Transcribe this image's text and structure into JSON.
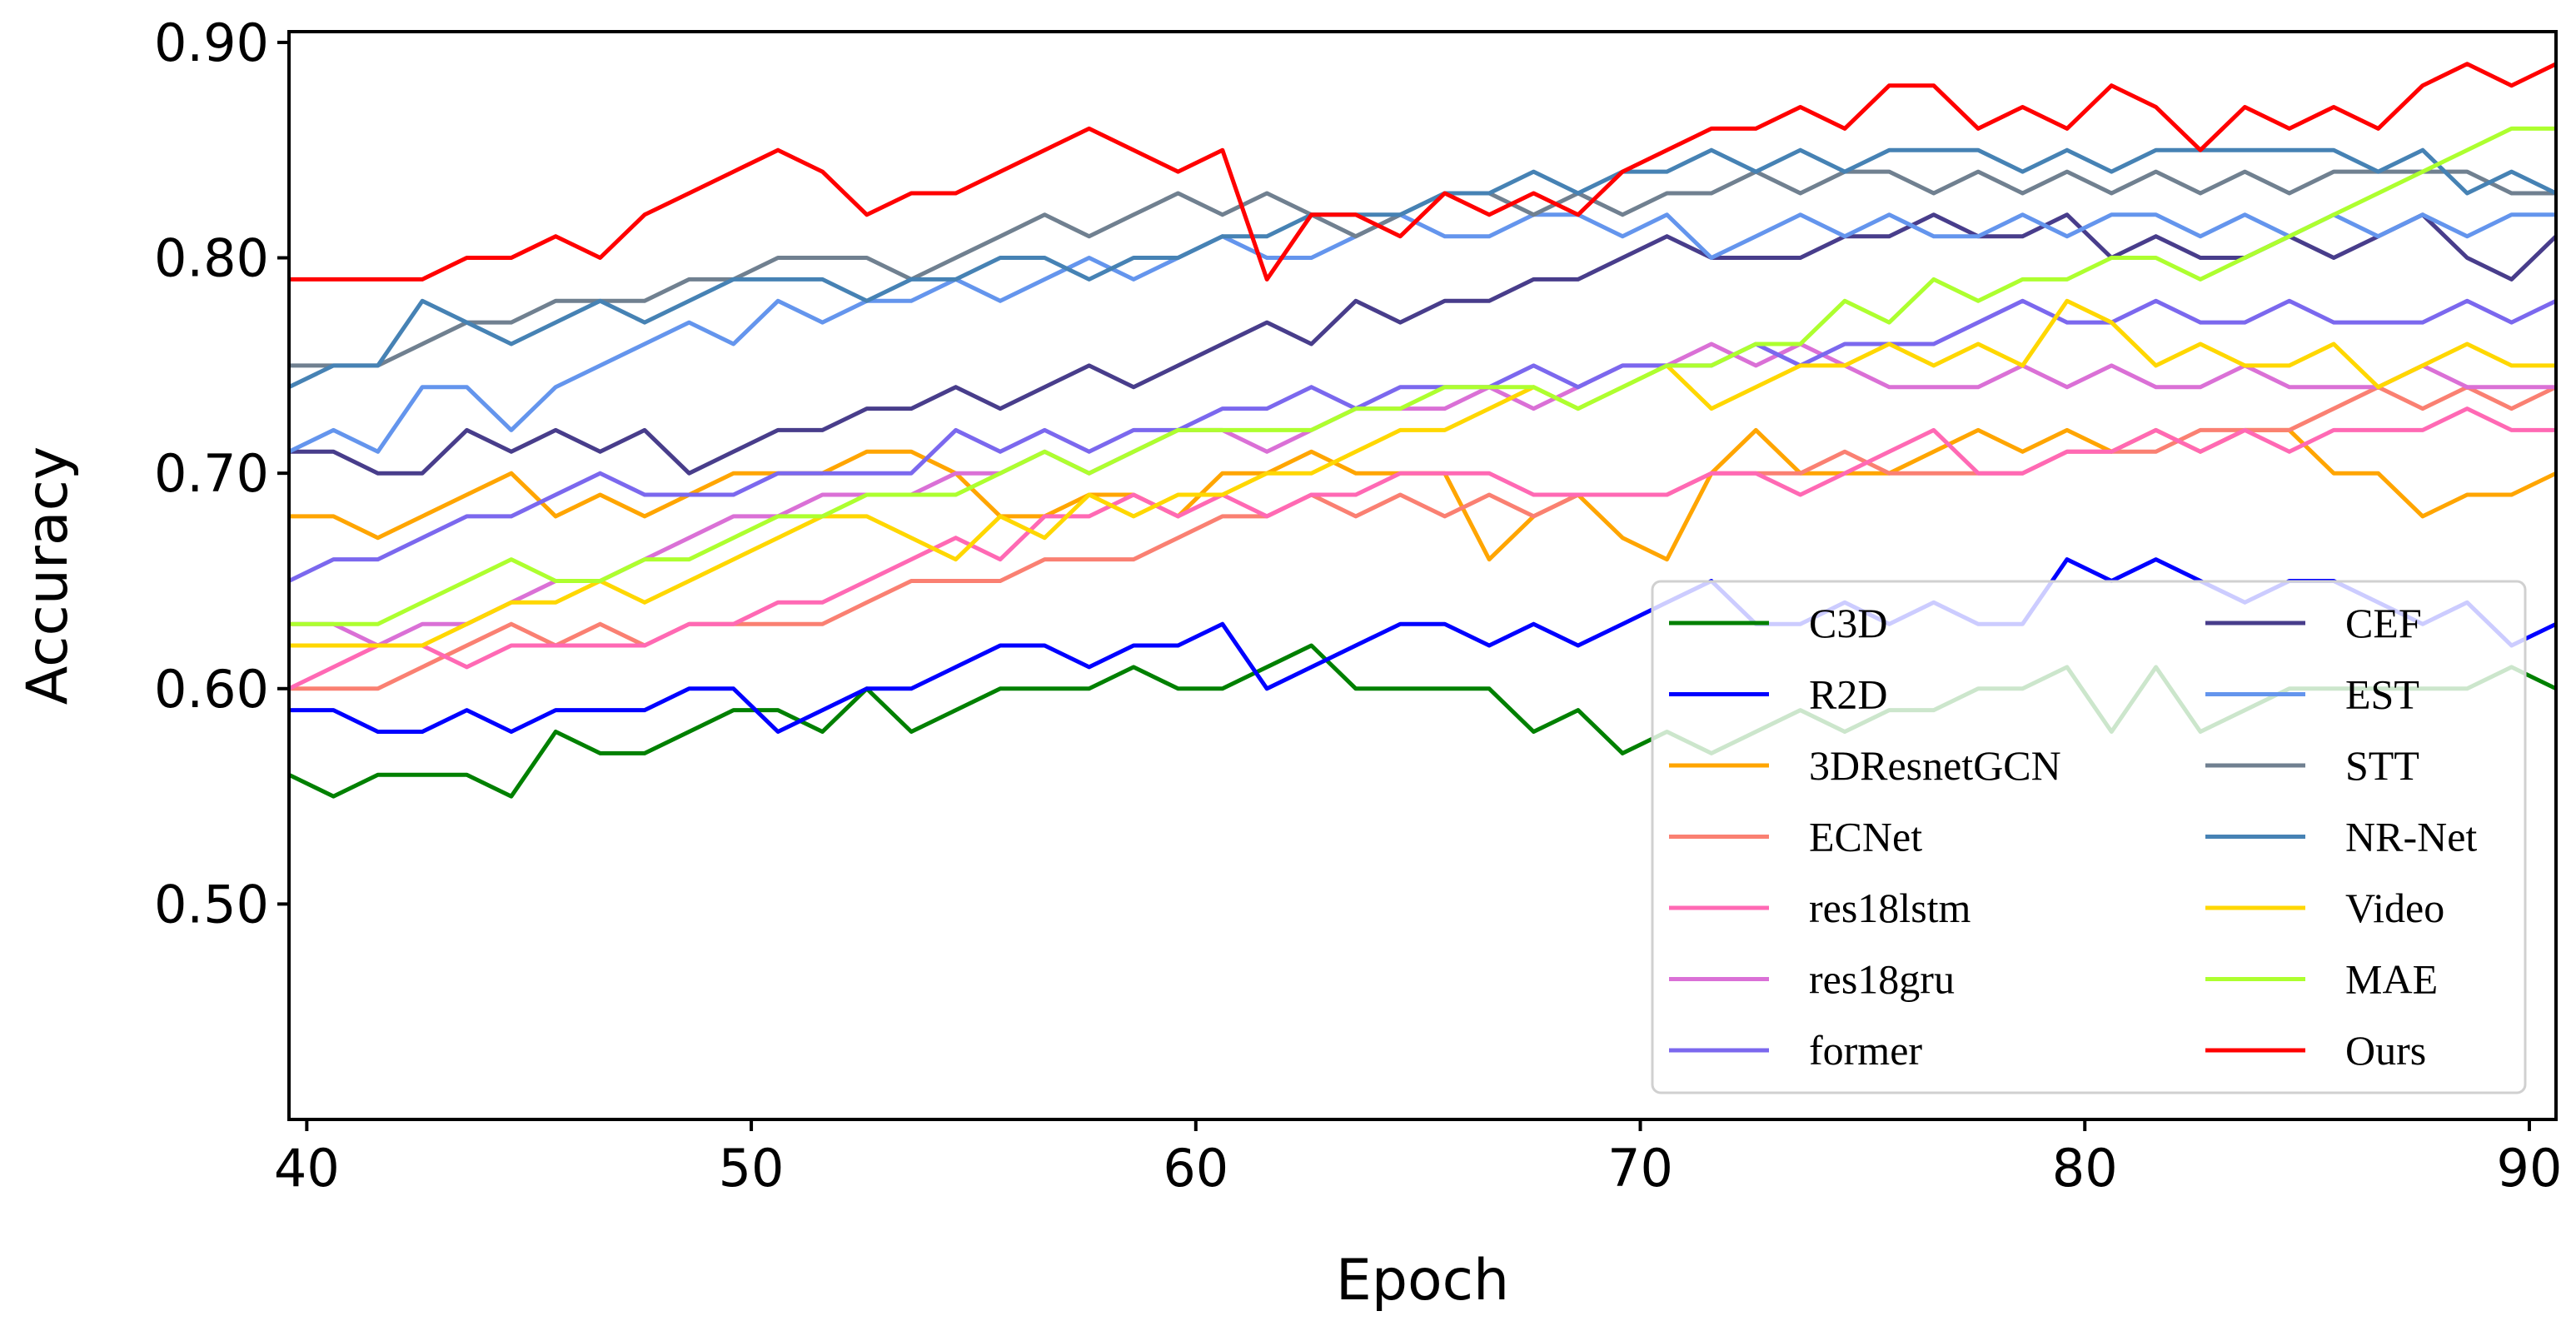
{
  "chart_data": {
    "type": "line",
    "title": "",
    "xlabel": "Epoch",
    "ylabel": "Accuracy",
    "xlim": [
      39.6,
      90.6
    ],
    "ylim": [
      0.4,
      0.905
    ],
    "xticks": [
      40,
      50,
      60,
      70,
      80,
      90
    ],
    "xtick_labels": [
      "40",
      "50",
      "60",
      "70",
      "80",
      "90"
    ],
    "yticks": [
      0.5,
      0.6,
      0.7,
      0.8,
      0.9
    ],
    "ytick_labels": [
      "0.50",
      "0.60",
      "0.70",
      "0.80",
      "0.90"
    ],
    "grid": false,
    "legend_position": "lower-right",
    "x_start": 39.6,
    "x_step": 1,
    "series": [
      {
        "name": "C3D",
        "color": "#008000",
        "values": [
          0.56,
          0.55,
          0.56,
          0.56,
          0.56,
          0.55,
          0.58,
          0.57,
          0.57,
          0.58,
          0.59,
          0.59,
          0.58,
          0.6,
          0.58,
          0.59,
          0.6,
          0.6,
          0.6,
          0.61,
          0.6,
          0.6,
          0.61,
          0.62,
          0.6,
          0.6,
          0.6,
          0.6,
          0.58,
          0.59,
          0.57,
          0.58,
          0.57,
          0.58,
          0.59,
          0.58,
          0.59,
          0.59,
          0.6,
          0.6,
          0.61,
          0.58,
          0.61,
          0.58,
          0.59,
          0.6,
          0.6,
          0.6,
          0.6,
          0.6,
          0.61,
          0.6
        ]
      },
      {
        "name": "R2D",
        "color": "#0000ff",
        "values": [
          0.59,
          0.59,
          0.58,
          0.58,
          0.59,
          0.58,
          0.59,
          0.59,
          0.59,
          0.6,
          0.6,
          0.58,
          0.59,
          0.6,
          0.6,
          0.61,
          0.62,
          0.62,
          0.61,
          0.62,
          0.62,
          0.63,
          0.6,
          0.61,
          0.62,
          0.63,
          0.63,
          0.62,
          0.63,
          0.62,
          0.63,
          0.64,
          0.65,
          0.63,
          0.63,
          0.64,
          0.63,
          0.64,
          0.63,
          0.63,
          0.66,
          0.65,
          0.66,
          0.65,
          0.64,
          0.65,
          0.65,
          0.64,
          0.63,
          0.64,
          0.62,
          0.63
        ]
      },
      {
        "name": "3DResnetGCN",
        "color": "#ffa500",
        "values": [
          0.68,
          0.68,
          0.67,
          0.68,
          0.69,
          0.7,
          0.68,
          0.69,
          0.68,
          0.69,
          0.7,
          0.7,
          0.7,
          0.71,
          0.71,
          0.7,
          0.68,
          0.68,
          0.69,
          0.69,
          0.68,
          0.7,
          0.7,
          0.71,
          0.7,
          0.7,
          0.7,
          0.66,
          0.68,
          0.69,
          0.67,
          0.66,
          0.7,
          0.72,
          0.7,
          0.7,
          0.7,
          0.71,
          0.72,
          0.71,
          0.72,
          0.71,
          0.72,
          0.71,
          0.72,
          0.72,
          0.7,
          0.7,
          0.68,
          0.69,
          0.69,
          0.7
        ]
      },
      {
        "name": "ECNet",
        "color": "#fa8072",
        "values": [
          0.6,
          0.6,
          0.6,
          0.61,
          0.62,
          0.63,
          0.62,
          0.63,
          0.62,
          0.63,
          0.63,
          0.63,
          0.63,
          0.64,
          0.65,
          0.65,
          0.65,
          0.66,
          0.66,
          0.66,
          0.67,
          0.68,
          0.68,
          0.69,
          0.68,
          0.69,
          0.68,
          0.69,
          0.68,
          0.69,
          0.69,
          0.69,
          0.7,
          0.7,
          0.7,
          0.71,
          0.7,
          0.7,
          0.7,
          0.7,
          0.71,
          0.71,
          0.71,
          0.72,
          0.72,
          0.72,
          0.73,
          0.74,
          0.73,
          0.74,
          0.73,
          0.74
        ]
      },
      {
        "name": "res18lstm",
        "color": "#ff69b4",
        "values": [
          0.6,
          0.61,
          0.62,
          0.62,
          0.61,
          0.62,
          0.62,
          0.62,
          0.62,
          0.63,
          0.63,
          0.64,
          0.64,
          0.65,
          0.66,
          0.67,
          0.66,
          0.68,
          0.68,
          0.69,
          0.68,
          0.69,
          0.68,
          0.69,
          0.69,
          0.7,
          0.7,
          0.7,
          0.69,
          0.69,
          0.69,
          0.69,
          0.7,
          0.7,
          0.69,
          0.7,
          0.71,
          0.72,
          0.7,
          0.7,
          0.71,
          0.71,
          0.72,
          0.71,
          0.72,
          0.71,
          0.72,
          0.72,
          0.72,
          0.73,
          0.72,
          0.72
        ]
      },
      {
        "name": "res18gru",
        "color": "#da70d6",
        "values": [
          0.63,
          0.63,
          0.62,
          0.63,
          0.63,
          0.64,
          0.65,
          0.65,
          0.66,
          0.67,
          0.68,
          0.68,
          0.69,
          0.69,
          0.69,
          0.7,
          0.7,
          0.71,
          0.7,
          0.71,
          0.72,
          0.72,
          0.71,
          0.72,
          0.73,
          0.73,
          0.73,
          0.74,
          0.73,
          0.74,
          0.75,
          0.75,
          0.76,
          0.75,
          0.76,
          0.75,
          0.74,
          0.74,
          0.74,
          0.75,
          0.74,
          0.75,
          0.74,
          0.74,
          0.75,
          0.74,
          0.74,
          0.74,
          0.75,
          0.74,
          0.74,
          0.74
        ]
      },
      {
        "name": "former",
        "color": "#7b68ee",
        "values": [
          0.65,
          0.66,
          0.66,
          0.67,
          0.68,
          0.68,
          0.69,
          0.7,
          0.69,
          0.69,
          0.69,
          0.7,
          0.7,
          0.7,
          0.7,
          0.72,
          0.71,
          0.72,
          0.71,
          0.72,
          0.72,
          0.73,
          0.73,
          0.74,
          0.73,
          0.74,
          0.74,
          0.74,
          0.75,
          0.74,
          0.75,
          0.75,
          0.75,
          0.76,
          0.75,
          0.76,
          0.76,
          0.76,
          0.77,
          0.78,
          0.77,
          0.77,
          0.78,
          0.77,
          0.77,
          0.78,
          0.77,
          0.77,
          0.77,
          0.78,
          0.77,
          0.78
        ]
      },
      {
        "name": "CEF",
        "color": "#483d8b",
        "values": [
          0.71,
          0.71,
          0.7,
          0.7,
          0.72,
          0.71,
          0.72,
          0.71,
          0.72,
          0.7,
          0.71,
          0.72,
          0.72,
          0.73,
          0.73,
          0.74,
          0.73,
          0.74,
          0.75,
          0.74,
          0.75,
          0.76,
          0.77,
          0.76,
          0.78,
          0.77,
          0.78,
          0.78,
          0.79,
          0.79,
          0.8,
          0.81,
          0.8,
          0.8,
          0.8,
          0.81,
          0.81,
          0.82,
          0.81,
          0.81,
          0.82,
          0.8,
          0.81,
          0.8,
          0.8,
          0.81,
          0.8,
          0.81,
          0.82,
          0.8,
          0.79,
          0.81
        ]
      },
      {
        "name": "EST",
        "color": "#6495ed",
        "values": [
          0.71,
          0.72,
          0.71,
          0.74,
          0.74,
          0.72,
          0.74,
          0.75,
          0.76,
          0.77,
          0.76,
          0.78,
          0.77,
          0.78,
          0.78,
          0.79,
          0.78,
          0.79,
          0.8,
          0.79,
          0.8,
          0.81,
          0.8,
          0.8,
          0.81,
          0.82,
          0.81,
          0.81,
          0.82,
          0.82,
          0.81,
          0.82,
          0.8,
          0.81,
          0.82,
          0.81,
          0.82,
          0.81,
          0.81,
          0.82,
          0.81,
          0.82,
          0.82,
          0.81,
          0.82,
          0.81,
          0.82,
          0.81,
          0.82,
          0.81,
          0.82,
          0.82
        ]
      },
      {
        "name": "STT",
        "color": "#708090",
        "values": [
          0.75,
          0.75,
          0.75,
          0.76,
          0.77,
          0.77,
          0.78,
          0.78,
          0.78,
          0.79,
          0.79,
          0.8,
          0.8,
          0.8,
          0.79,
          0.8,
          0.81,
          0.82,
          0.81,
          0.82,
          0.83,
          0.82,
          0.83,
          0.82,
          0.81,
          0.82,
          0.83,
          0.83,
          0.82,
          0.83,
          0.82,
          0.83,
          0.83,
          0.84,
          0.83,
          0.84,
          0.84,
          0.83,
          0.84,
          0.83,
          0.84,
          0.83,
          0.84,
          0.83,
          0.84,
          0.83,
          0.84,
          0.84,
          0.84,
          0.84,
          0.83,
          0.83
        ]
      },
      {
        "name": "NR-Net",
        "color": "#4682b4",
        "values": [
          0.74,
          0.75,
          0.75,
          0.78,
          0.77,
          0.76,
          0.77,
          0.78,
          0.77,
          0.78,
          0.79,
          0.79,
          0.79,
          0.78,
          0.79,
          0.79,
          0.8,
          0.8,
          0.79,
          0.8,
          0.8,
          0.81,
          0.81,
          0.82,
          0.82,
          0.82,
          0.83,
          0.83,
          0.84,
          0.83,
          0.84,
          0.84,
          0.85,
          0.84,
          0.85,
          0.84,
          0.85,
          0.85,
          0.85,
          0.84,
          0.85,
          0.84,
          0.85,
          0.85,
          0.85,
          0.85,
          0.85,
          0.84,
          0.85,
          0.83,
          0.84,
          0.83
        ]
      },
      {
        "name": "Video",
        "color": "#ffd700",
        "values": [
          0.62,
          0.62,
          0.62,
          0.62,
          0.63,
          0.64,
          0.64,
          0.65,
          0.64,
          0.65,
          0.66,
          0.67,
          0.68,
          0.68,
          0.67,
          0.66,
          0.68,
          0.67,
          0.69,
          0.68,
          0.69,
          0.69,
          0.7,
          0.7,
          0.71,
          0.72,
          0.72,
          0.73,
          0.74,
          0.73,
          0.74,
          0.75,
          0.73,
          0.74,
          0.75,
          0.75,
          0.76,
          0.75,
          0.76,
          0.75,
          0.78,
          0.77,
          0.75,
          0.76,
          0.75,
          0.75,
          0.76,
          0.74,
          0.75,
          0.76,
          0.75,
          0.75
        ]
      },
      {
        "name": "MAE",
        "color": "#adff2f",
        "values": [
          0.63,
          0.63,
          0.63,
          0.64,
          0.65,
          0.66,
          0.65,
          0.65,
          0.66,
          0.66,
          0.67,
          0.68,
          0.68,
          0.69,
          0.69,
          0.69,
          0.7,
          0.71,
          0.7,
          0.71,
          0.72,
          0.72,
          0.72,
          0.72,
          0.73,
          0.73,
          0.74,
          0.74,
          0.74,
          0.73,
          0.74,
          0.75,
          0.75,
          0.76,
          0.76,
          0.78,
          0.77,
          0.79,
          0.78,
          0.79,
          0.79,
          0.8,
          0.8,
          0.79,
          0.8,
          0.81,
          0.82,
          0.83,
          0.84,
          0.85,
          0.86,
          0.86
        ]
      },
      {
        "name": "Ours",
        "color": "#ff0000",
        "values": [
          0.79,
          0.79,
          0.79,
          0.79,
          0.8,
          0.8,
          0.81,
          0.8,
          0.82,
          0.83,
          0.84,
          0.85,
          0.84,
          0.82,
          0.83,
          0.83,
          0.84,
          0.85,
          0.86,
          0.85,
          0.84,
          0.85,
          0.79,
          0.82,
          0.82,
          0.81,
          0.83,
          0.82,
          0.83,
          0.82,
          0.84,
          0.85,
          0.86,
          0.86,
          0.87,
          0.86,
          0.88,
          0.88,
          0.86,
          0.87,
          0.86,
          0.88,
          0.87,
          0.85,
          0.87,
          0.86,
          0.87,
          0.86,
          0.88,
          0.89,
          0.88,
          0.89
        ]
      }
    ]
  }
}
